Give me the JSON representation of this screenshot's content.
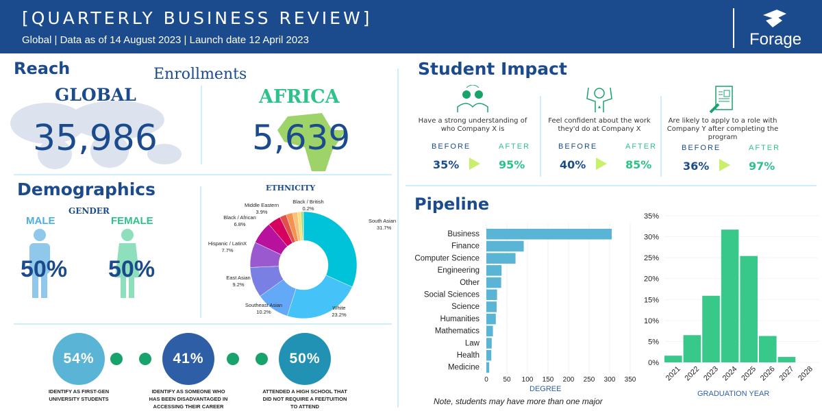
{
  "header": {
    "title": "[QUARTERLY BUSINESS REVIEW]",
    "subtitle": "Global | Data as of 14 August 2023 | Launch date 12 April 2023",
    "logo": "Forage"
  },
  "reach": {
    "title": "Reach",
    "enrollments": "Enrollments",
    "global_label": "GLOBAL",
    "global_value": "35,986",
    "africa_label": "AFRICA",
    "africa_value": "5,639"
  },
  "demographics": {
    "title": "Demographics",
    "gender": "GENDER",
    "male_label": "MALE",
    "male_value": "50%",
    "female_label": "FEMALE",
    "female_value": "50%"
  },
  "ethnicity": {
    "title": "ETHNICITY",
    "slices": [
      {
        "label": "South Asian",
        "value": 31.7,
        "color": "#00c2d9"
      },
      {
        "label": "White",
        "value": 23.2,
        "color": "#45c3f9"
      },
      {
        "label": "Southeast Asian",
        "value": 10.2,
        "color": "#64a8f8"
      },
      {
        "label": "East Asian",
        "value": 9.2,
        "color": "#7a7fe4"
      },
      {
        "label": "Hispanic / LatinX",
        "value": 7.7,
        "color": "#9b59d0"
      },
      {
        "label": "Black / African",
        "value": 6.8,
        "color": "#b8119e"
      },
      {
        "label": "Middle Eastern",
        "value": 3.9,
        "color": "#d6005f"
      },
      {
        "label": "",
        "value": 2.0,
        "color": "#e2504a"
      },
      {
        "label": "",
        "value": 2.0,
        "color": "#f6924f"
      },
      {
        "label": "",
        "value": 1.5,
        "color": "#fbc07a"
      },
      {
        "label": "",
        "value": 1.1,
        "color": "#f6e27a"
      },
      {
        "label": "",
        "value": 0.5,
        "color": "#8ed36a"
      },
      {
        "label": "Black / British",
        "value": 0.2,
        "color": "#4fb848"
      }
    ],
    "value_labels": {
      "South Asian": "31.7%",
      "White": "23.2%",
      "Southeast Asian": "10.2%",
      "East Asian": "9.2%",
      "Hispanic / LatinX": "7.7%",
      "Black / African": "6.8%",
      "Middle Eastern": "3.9%",
      "Black / British": "0.2%"
    }
  },
  "stats": [
    {
      "value": "54%",
      "caption": "IDENTIFY AS FIRST-GEN UNIVERSITY STUDENTS",
      "color": "#5ab4d6"
    },
    {
      "value": "41%",
      "caption": "IDENTIFY AS SOMEONE WHO HAS BEEN DISADVANTAGED IN ACCESSING THEIR CAREER",
      "color": "#2e5ea6"
    },
    {
      "value": "50%",
      "caption": "ATTENDED A HIGH SCHOOL THAT DID NOT REQUIRE  A FEE/TUITION TO ATTEND",
      "color": "#2192b4"
    }
  ],
  "impact": {
    "title": "Student Impact",
    "before_label": "BEFORE",
    "after_label": "AFTER",
    "items": [
      {
        "icon": "lightbulb-people-icon",
        "text": "Have a strong understanding of who Company X is",
        "before": "35%",
        "after": "95%"
      },
      {
        "icon": "confident-person-icon",
        "text": "Feel confident about the work they'd do at Company X",
        "before": "40%",
        "after": "85%"
      },
      {
        "icon": "application-form-icon",
        "text": "Are likely to apply to a role with Company Y after completing the program",
        "before": "36%",
        "after": "97%"
      }
    ]
  },
  "pipeline": {
    "title": "Pipeline"
  },
  "chart_data": [
    {
      "type": "bar",
      "orientation": "horizontal",
      "xlabel": "DEGREE",
      "note": "Note, students may have more than one major",
      "xlim": [
        0,
        350
      ],
      "xticks": [
        "0",
        "50",
        "100",
        "150",
        "200",
        "250",
        "300",
        "350"
      ],
      "categories": [
        "Business",
        "Finance",
        "Computer Science",
        "Engineering",
        "Other",
        "Social Sciences",
        "Science",
        "Humanities",
        "Mathematics",
        "Law",
        "Health",
        "Medicine"
      ],
      "values": [
        305,
        91,
        71,
        37,
        36,
        26,
        25,
        23,
        16,
        13,
        12,
        7
      ],
      "color": "#5ab4d6"
    },
    {
      "type": "bar",
      "xlabel": "GRADUATION YEAR",
      "ylim": [
        0,
        35
      ],
      "yticks": [
        "0%",
        "5%",
        "10%",
        "15%",
        "20%",
        "25%",
        "30%",
        "35%"
      ],
      "categories": [
        "2021",
        "2022",
        "2023",
        "2024",
        "2025",
        "2026",
        "2027",
        "2028"
      ],
      "values": [
        1.6,
        6.5,
        15.9,
        31.7,
        25.4,
        6.3,
        1.3,
        0
      ],
      "color": "#38c98a"
    }
  ],
  "colors": {
    "header": "#1b4b8c",
    "green": "#2ec28a",
    "arrow": "#c8f06a"
  }
}
